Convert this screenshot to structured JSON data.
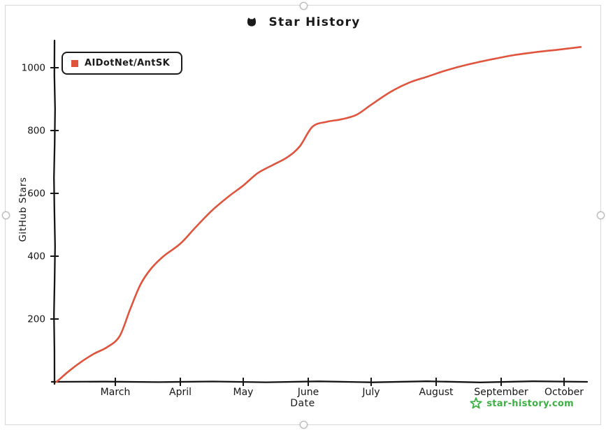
{
  "chart_data": {
    "type": "line",
    "title": "Star History",
    "xlabel": "Date",
    "ylabel": "GitHub Stars",
    "ylim": [
      0,
      1100
    ],
    "grid": false,
    "legend_position": "top-left",
    "y_ticks": [
      200,
      400,
      600,
      800,
      1000
    ],
    "x_tick_labels": [
      "March",
      "April",
      "May",
      "June",
      "July",
      "August",
      "September",
      "October"
    ],
    "x_tick_dates": [
      "2024-03-01",
      "2024-04-01",
      "2024-05-01",
      "2024-06-01",
      "2024-07-01",
      "2024-08-01",
      "2024-09-01",
      "2024-10-01"
    ],
    "x": [
      "2024-02-02",
      "2024-02-08",
      "2024-02-14",
      "2024-02-20",
      "2024-02-26",
      "2024-03-03",
      "2024-03-08",
      "2024-03-13",
      "2024-03-18",
      "2024-03-24",
      "2024-04-01",
      "2024-04-08",
      "2024-04-16",
      "2024-04-24",
      "2024-05-01",
      "2024-05-08",
      "2024-05-15",
      "2024-05-22",
      "2024-05-28",
      "2024-06-03",
      "2024-06-10",
      "2024-06-17",
      "2024-06-24",
      "2024-07-01",
      "2024-07-10",
      "2024-07-19",
      "2024-07-28",
      "2024-08-06",
      "2024-08-16",
      "2024-08-27",
      "2024-09-07",
      "2024-09-18",
      "2024-09-29",
      "2024-10-09"
    ],
    "series": [
      {
        "name": "AIDotNet/AntSK",
        "color": "#E0533C",
        "values": [
          0,
          35,
          65,
          90,
          110,
          145,
          230,
          310,
          360,
          400,
          440,
          490,
          545,
          590,
          625,
          665,
          690,
          715,
          750,
          812,
          828,
          836,
          850,
          882,
          922,
          952,
          972,
          992,
          1010,
          1026,
          1040,
          1050,
          1058,
          1066
        ]
      }
    ]
  },
  "header": {
    "title_icon": "octocat-icon"
  },
  "watermark": {
    "label": "star-history.com",
    "color": "#3CB043",
    "icon": "star-icon"
  }
}
